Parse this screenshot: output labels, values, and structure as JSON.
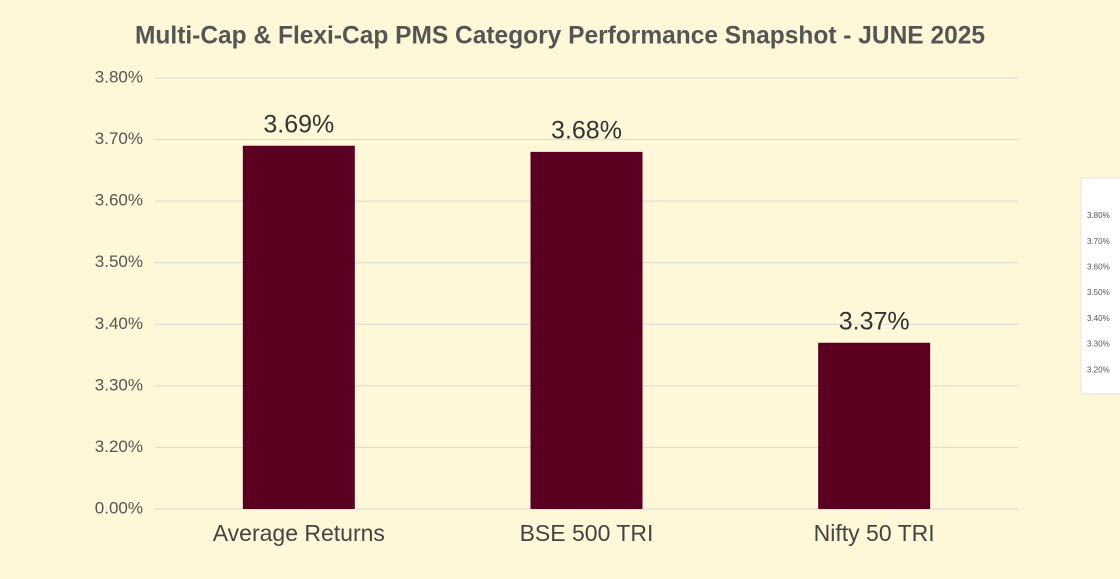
{
  "chart_data": {
    "type": "bar",
    "title": "Multi-Cap & Flexi-Cap PMS Category Performance Snapshot - JUNE 2025",
    "categories": [
      "Average Returns",
      "BSE 500 TRI",
      "Nifty 50 TRI"
    ],
    "values": [
      3.69,
      3.68,
      3.37
    ],
    "value_labels": [
      "3.69%",
      "3.68%",
      "3.37%"
    ],
    "color": "#5c0022",
    "ylim": [
      0,
      3.8
    ],
    "yticks": [
      {
        "value": 0,
        "label": "0.00%"
      },
      {
        "value": 3.2,
        "label": "3.20%"
      },
      {
        "value": 3.3,
        "label": "3.30%"
      },
      {
        "value": 3.4,
        "label": "3.40%"
      },
      {
        "value": 3.5,
        "label": "3.50%"
      },
      {
        "value": 3.6,
        "label": "3.60%"
      },
      {
        "value": 3.7,
        "label": "3.70%"
      },
      {
        "value": 3.8,
        "label": "3.80%"
      }
    ],
    "axis_break": true,
    "grid": true
  },
  "inset_labels": [
    "3.80%",
    "3.70%",
    "3.60%",
    "3.50%",
    "3.40%",
    "3.30%",
    "3.20%"
  ]
}
